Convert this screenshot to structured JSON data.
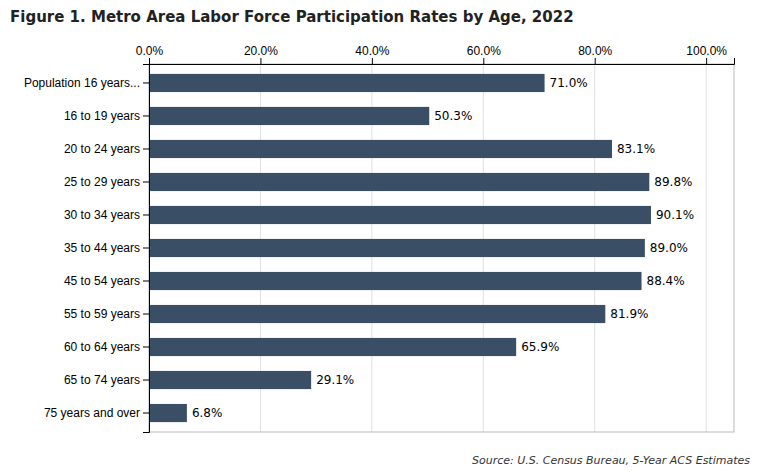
{
  "chart_data": {
    "type": "bar",
    "orientation": "horizontal",
    "title": "Figure 1. Metro Area Labor Force Participation Rates by Age, 2022",
    "annotations": [
      "Source: U.S. Census Bureau, 5-Year ACS Estimates"
    ],
    "categories": [
      "Population 16 years...",
      "16 to 19 years",
      "20 to 24 years",
      "25 to 29 years",
      "30 to 34 years",
      "35 to 44 years",
      "45 to 54 years",
      "55 to 59 years",
      "60 to 64 years",
      "65 to 74 years",
      "75 years and over"
    ],
    "values": [
      71.0,
      50.3,
      83.1,
      89.8,
      90.1,
      89.0,
      88.4,
      81.9,
      65.9,
      29.1,
      6.8
    ],
    "value_labels": [
      "71.0%",
      "50.3%",
      "83.1%",
      "89.8%",
      "90.1%",
      "89.0%",
      "88.4%",
      "81.9%",
      "65.9%",
      "29.1%",
      "6.8%"
    ],
    "data_labels": true,
    "color": "#3a4f66",
    "xlim": [
      0,
      105
    ],
    "xticks": [
      {
        "value": 0,
        "label": "0.0%"
      },
      {
        "value": 20,
        "label": "20.0%"
      },
      {
        "value": 40,
        "label": "40.0%"
      },
      {
        "value": 60,
        "label": "60.0%"
      },
      {
        "value": 80,
        "label": "80.0%"
      },
      {
        "value": 100,
        "label": "100.0%"
      }
    ],
    "grid": true
  }
}
